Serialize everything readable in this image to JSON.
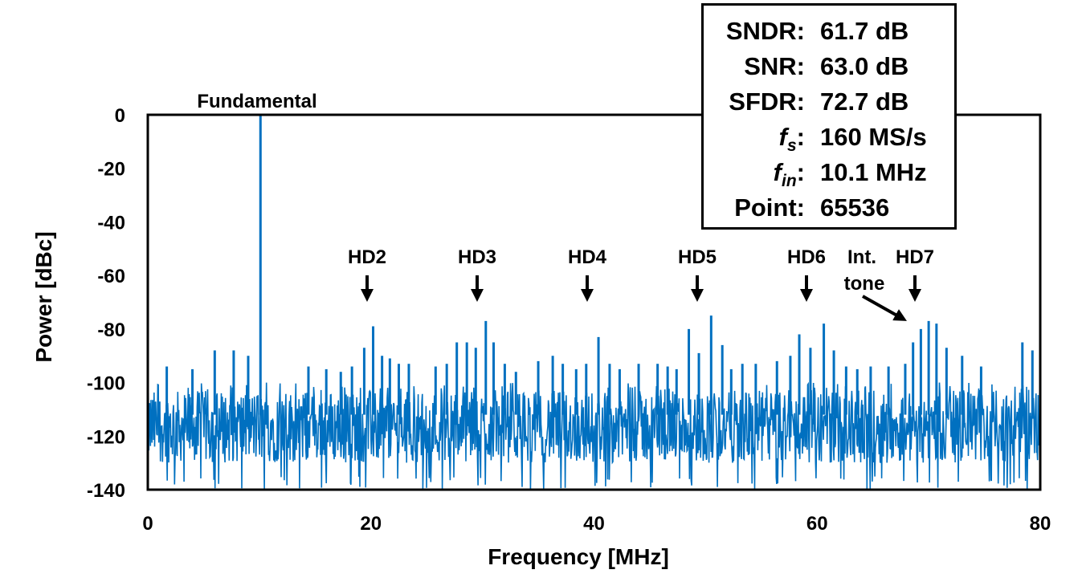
{
  "chart_data": {
    "type": "line",
    "xlabel": "Frequency [MHz]",
    "ylabel": "Power [dBc]",
    "xlim": [
      0,
      80
    ],
    "ylim": [
      -140,
      0
    ],
    "xticks": [
      "0",
      "20",
      "40",
      "60",
      "80"
    ],
    "yticks": [
      "0",
      "-20",
      "-40",
      "-60",
      "-80",
      "-100",
      "-120",
      "-140"
    ],
    "grid": false,
    "legend": "none",
    "series": [
      {
        "color": "#0070C0",
        "noise_floor_range": [
          -130,
          -103
        ],
        "x": [
          0.0,
          1.7,
          4.0,
          6.0,
          7.7,
          9.0,
          10.1,
          14.4,
          16.0,
          17.3,
          18.3,
          19.4,
          20.2,
          21.0,
          21.7,
          22.5,
          23.4,
          25.8,
          26.8,
          27.7,
          28.6,
          29.4,
          30.3,
          31.0,
          32.0,
          33.0,
          35.0,
          36.3,
          37.2,
          38.4,
          39.3,
          40.4,
          41.4,
          42.3,
          44.0,
          45.7,
          46.6,
          47.4,
          48.5,
          49.4,
          50.5,
          51.5,
          52.3,
          53.3,
          54.5,
          56.4,
          57.6,
          58.4,
          59.4,
          60.6,
          61.5,
          62.6,
          63.6,
          64.8,
          66.4,
          67.9,
          68.6,
          69.3,
          70.0,
          70.7,
          71.6,
          73.0,
          74.7,
          78.4,
          79.3,
          80.0
        ],
        "y": [
          -90,
          -94,
          -95,
          -88,
          -88,
          -90,
          0,
          -94,
          -95,
          -96,
          -94,
          -87,
          -79,
          -90,
          -91,
          -93,
          -93,
          -94,
          -93,
          -85,
          -85,
          -87,
          -77,
          -85,
          -93,
          -96,
          -92,
          -90,
          -93,
          -95,
          -93,
          -83,
          -93,
          -95,
          -93,
          -93,
          -94,
          -95,
          -80,
          -89,
          -75,
          -86,
          -95,
          -93,
          -93,
          -92,
          -90,
          -82,
          -87,
          -78,
          -88,
          -94,
          -95,
          -94,
          -94,
          -93,
          -85,
          -80,
          -77,
          -78,
          -87,
          -90,
          -94,
          -85,
          -88,
          -95
        ]
      }
    ],
    "annotations": {
      "fundamental": "Fundamental",
      "hd2": "HD2",
      "hd3": "HD3",
      "hd4": "HD4",
      "hd5": "HD5",
      "hd6": "HD6",
      "hd7": "HD7",
      "int_tone_line1": "Int.",
      "int_tone_line2": "tone"
    }
  },
  "infobox": {
    "rows": [
      {
        "key": "SNDR:",
        "value": "61.7 dB"
      },
      {
        "key": "SNR:",
        "value": "63.0 dB"
      },
      {
        "key": "SFDR:",
        "value": "72.7 dB"
      },
      {
        "key_main": "f",
        "key_sub": "s",
        "key_suffix": ":",
        "value": "160 MS/s"
      },
      {
        "key_main": "f",
        "key_sub": "in",
        "key_suffix": ":",
        "value": "10.1 MHz"
      },
      {
        "key": "Point:",
        "value": "65536"
      }
    ]
  }
}
